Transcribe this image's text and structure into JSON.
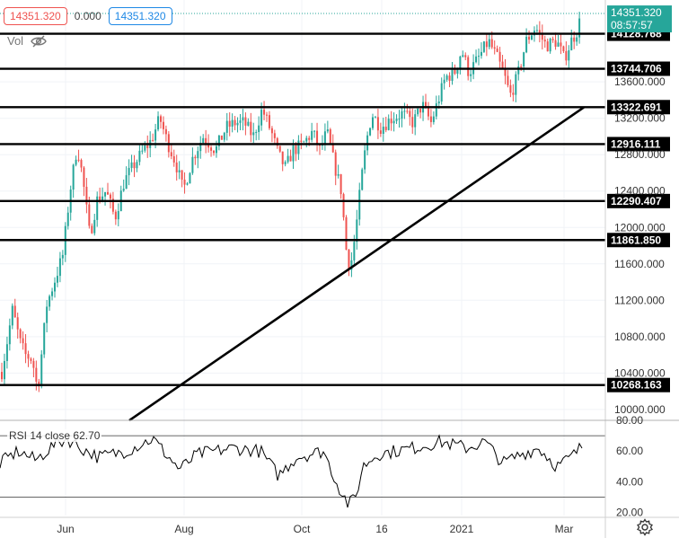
{
  "header": {
    "bid": "14351.320",
    "spread": "0.000",
    "ask": "14351.320",
    "volume_label": "Vol"
  },
  "price_tag": {
    "price": "14351.320",
    "countdown": "08:57:57"
  },
  "levels": [
    "14128.768",
    "13744.706",
    "13322.691",
    "12916.111",
    "12290.407",
    "11861.850",
    "10268.163"
  ],
  "price_axis": {
    "ticks": [
      "13600.000",
      "13200.000",
      "12800.000",
      "12400.000",
      "12000.000",
      "11600.000",
      "11200.000",
      "10800.000",
      "10400.000",
      "10000.000"
    ]
  },
  "rsi": {
    "label": "RSI 14 close",
    "value": "62.70",
    "ticks": [
      "80.00",
      "60.00",
      "40.00",
      "20.00"
    ]
  },
  "time_axis": {
    "labels": [
      "Jun",
      "Aug",
      "Oct",
      "16",
      "2021",
      "Mar"
    ]
  },
  "colors": {
    "up": "#26a69a",
    "down": "#ef5350",
    "line": "#000000",
    "tag_bg": "#26a69a",
    "level_tag_bg": "#000000"
  },
  "chart_data": {
    "type": "candlestick",
    "price_range": [
      9900,
      14500
    ],
    "rsi_range": [
      18,
      80
    ],
    "rsi_overbought": 70,
    "rsi_oversold": 30,
    "trendline": [
      [
        "May",
        9880
      ],
      [
        "Mar",
        13320
      ]
    ],
    "last_price": 14351.32,
    "last_rsi": 62.7
  }
}
